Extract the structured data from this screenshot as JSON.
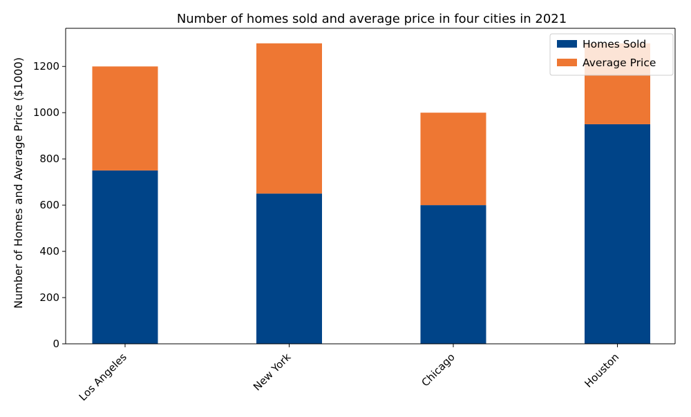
{
  "chart_data": {
    "type": "bar",
    "stacked": true,
    "title": "Number of homes sold and average price in four cities in 2021",
    "xlabel": "",
    "ylabel": "Number of Homes and Average Price ($1000)",
    "categories": [
      "Los Angeles",
      "New York",
      "Chicago",
      "Houston"
    ],
    "series": [
      {
        "name": "Homes Sold",
        "values": [
          750,
          650,
          600,
          950
        ],
        "color": "#004488"
      },
      {
        "name": "Average Price",
        "values": [
          450,
          650,
          400,
          350
        ],
        "color": "#EE7733"
      }
    ],
    "ylim": [
      0,
      1365
    ],
    "yticks": [
      0,
      200,
      400,
      600,
      800,
      1000,
      1200
    ],
    "grid": false,
    "legend_position": "top-right"
  }
}
